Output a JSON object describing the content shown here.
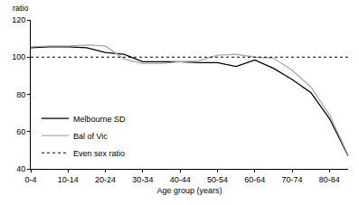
{
  "chart_data": {
    "type": "line",
    "y_label": "ratio",
    "x_label": "Age group (years)",
    "categories": [
      "0-4",
      null,
      "10-14",
      null,
      "20-24",
      null,
      "30-34",
      null,
      "40-44",
      null,
      "50-54",
      null,
      "60-64",
      null,
      "70-74",
      null,
      "80-84",
      null
    ],
    "series": [
      {
        "name": "Melbourne SD",
        "color": "#000000",
        "line_style": "solid",
        "values": [
          105,
          105.5,
          105.5,
          105,
          102.5,
          101.5,
          97.5,
          97.5,
          97.5,
          97,
          97,
          95,
          98.5,
          94,
          88,
          81,
          67,
          47
        ]
      },
      {
        "name": "Bal of Vic",
        "color": "#aaaaaa",
        "line_style": "solid",
        "values": [
          105.5,
          106,
          106,
          106.5,
          106,
          99,
          96.5,
          96.5,
          97.5,
          98,
          101,
          101.5,
          100,
          99.5,
          93,
          84,
          69,
          47.5
        ]
      },
      {
        "name": "Even sex ratio",
        "color": "#000000",
        "line_style": "dotted",
        "values": [
          100,
          100,
          100,
          100,
          100,
          100,
          100,
          100,
          100,
          100,
          100,
          100,
          100,
          100,
          100,
          100,
          100,
          100
        ]
      }
    ],
    "ylim": [
      40,
      120
    ],
    "yticks": [
      40,
      60,
      80,
      100,
      120
    ],
    "grid": false,
    "legend": "lower left"
  }
}
